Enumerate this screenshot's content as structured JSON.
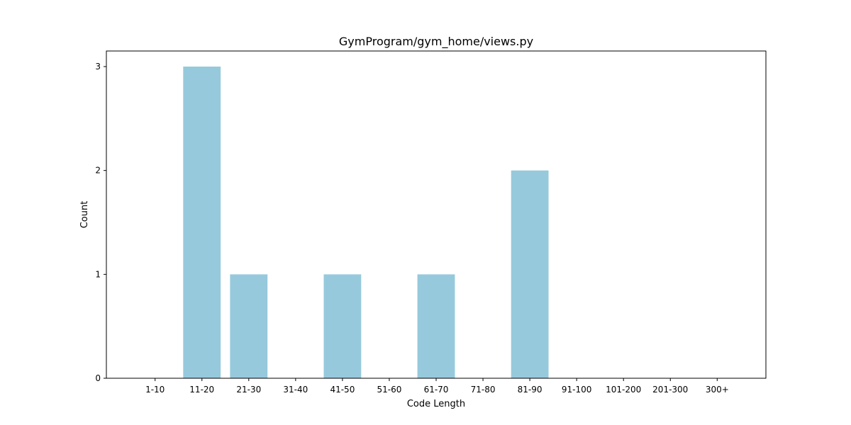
{
  "chart_data": {
    "type": "bar",
    "title": "GymProgram/gym_home/views.py",
    "xlabel": "Code Length",
    "ylabel": "Count",
    "categories": [
      "1-10",
      "11-20",
      "21-30",
      "31-40",
      "41-50",
      "51-60",
      "61-70",
      "71-80",
      "81-90",
      "91-100",
      "101-200",
      "201-300",
      "300+"
    ],
    "values": [
      0,
      3,
      1,
      0,
      1,
      0,
      1,
      0,
      2,
      0,
      0,
      0,
      0
    ],
    "ylim": [
      0,
      3.15
    ],
    "yticks": [
      0,
      1,
      2,
      3
    ],
    "bar_color": "#96c9dc",
    "grid": false
  }
}
